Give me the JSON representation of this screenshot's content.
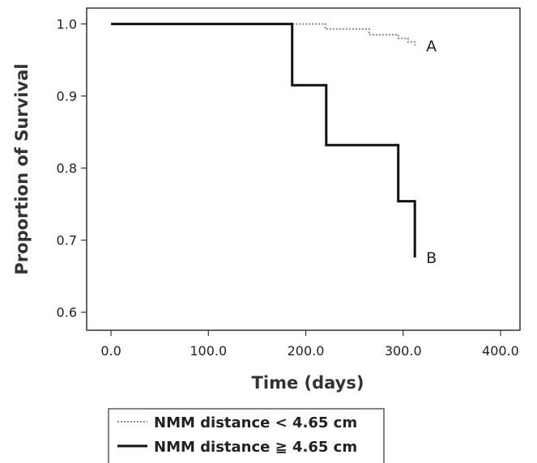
{
  "chart_data": {
    "type": "line",
    "title": "",
    "xlabel": "Time (days)",
    "ylabel": "Proportion of Survival",
    "xlim": [
      -25,
      420
    ],
    "ylim": [
      0.575,
      1.022
    ],
    "xticks": [
      0,
      100,
      200,
      300,
      400
    ],
    "xtick_labels": [
      "0.0",
      "100.0",
      "200.0",
      "300.0",
      "400.0"
    ],
    "yticks": [
      0.6,
      0.7,
      0.8,
      0.9,
      1.0
    ],
    "ytick_labels": [
      "0.6",
      "0.7",
      "0.8",
      "0.9",
      "1.0"
    ],
    "grid": false,
    "legend_position": "bottom",
    "series": [
      {
        "name": "NMM distance < 4.65 cm",
        "style": "dotted",
        "color": "#888888",
        "end_label": "A",
        "points": [
          [
            0,
            1.0
          ],
          [
            220,
            1.0
          ],
          [
            220,
            0.993
          ],
          [
            265,
            0.993
          ],
          [
            265,
            0.985
          ],
          [
            295,
            0.985
          ],
          [
            295,
            0.98
          ],
          [
            305,
            0.98
          ],
          [
            305,
            0.975
          ],
          [
            312,
            0.975
          ],
          [
            312,
            0.97
          ]
        ]
      },
      {
        "name": "NMM distance ≧ 4.65 cm",
        "style": "solid",
        "color": "#111111",
        "end_label": "B",
        "points": [
          [
            0,
            1.0
          ],
          [
            186,
            1.0
          ],
          [
            186,
            0.915
          ],
          [
            221,
            0.915
          ],
          [
            221,
            0.832
          ],
          [
            295,
            0.832
          ],
          [
            295,
            0.754
          ],
          [
            312,
            0.754
          ],
          [
            312,
            0.676
          ]
        ]
      }
    ]
  }
}
